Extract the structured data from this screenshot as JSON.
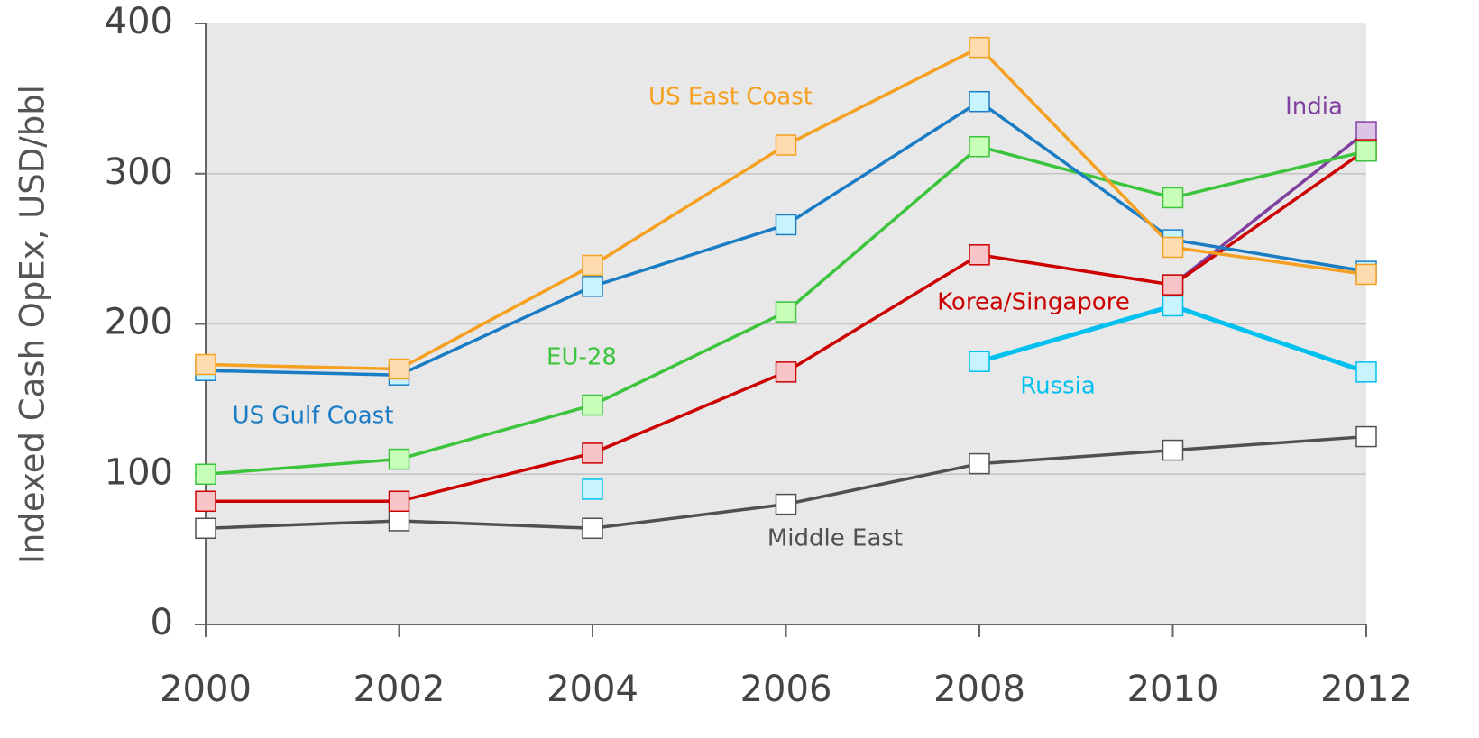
{
  "chart_data": {
    "type": "line",
    "y_label": "Indexed Cash OpEx, USD/bbl",
    "x": [
      2000,
      2002,
      2004,
      2006,
      2008,
      2010,
      2012
    ],
    "xlim": [
      2000,
      2012
    ],
    "xticks": [
      2000,
      2002,
      2004,
      2006,
      2008,
      2010,
      2012
    ],
    "ylim": [
      0,
      400
    ],
    "yticks": [
      0,
      100,
      200,
      300,
      400
    ],
    "grid": true,
    "series": [
      {
        "name": "US Gulf Coast",
        "color": "#1a7cc4",
        "marker_fill": "#c8f4ff",
        "values": [
          169,
          166,
          225,
          266,
          348,
          256,
          235
        ]
      },
      {
        "name": "US East Coast",
        "color": "#f5a020",
        "marker_fill": "#ffdcb0",
        "values": [
          173,
          170,
          239,
          319,
          384,
          251,
          233
        ]
      },
      {
        "name": "EU-28",
        "color": "#3cc43c",
        "marker_fill": "#c8ffb8",
        "values": [
          100,
          110,
          146,
          208,
          318,
          284,
          315
        ]
      },
      {
        "name": "Korea/Singapore",
        "color": "#cc0000",
        "marker_fill": "#f8c4c8",
        "values": [
          82,
          82,
          114,
          168,
          246,
          226,
          316
        ]
      },
      {
        "name": "Russia",
        "color": "#00c0f0",
        "marker_fill": "#c8f4ff",
        "values": [
          null,
          null,
          90,
          null,
          175,
          212,
          168
        ]
      },
      {
        "name": "India",
        "color": "#8040a0",
        "marker_fill": "#dcc4e4",
        "values": [
          null,
          null,
          null,
          null,
          null,
          226,
          328
        ]
      },
      {
        "name": "Middle East",
        "color": "#505050",
        "marker_fill": "#ffffff",
        "values": [
          64,
          69,
          64,
          80,
          107,
          116,
          125
        ]
      }
    ]
  }
}
